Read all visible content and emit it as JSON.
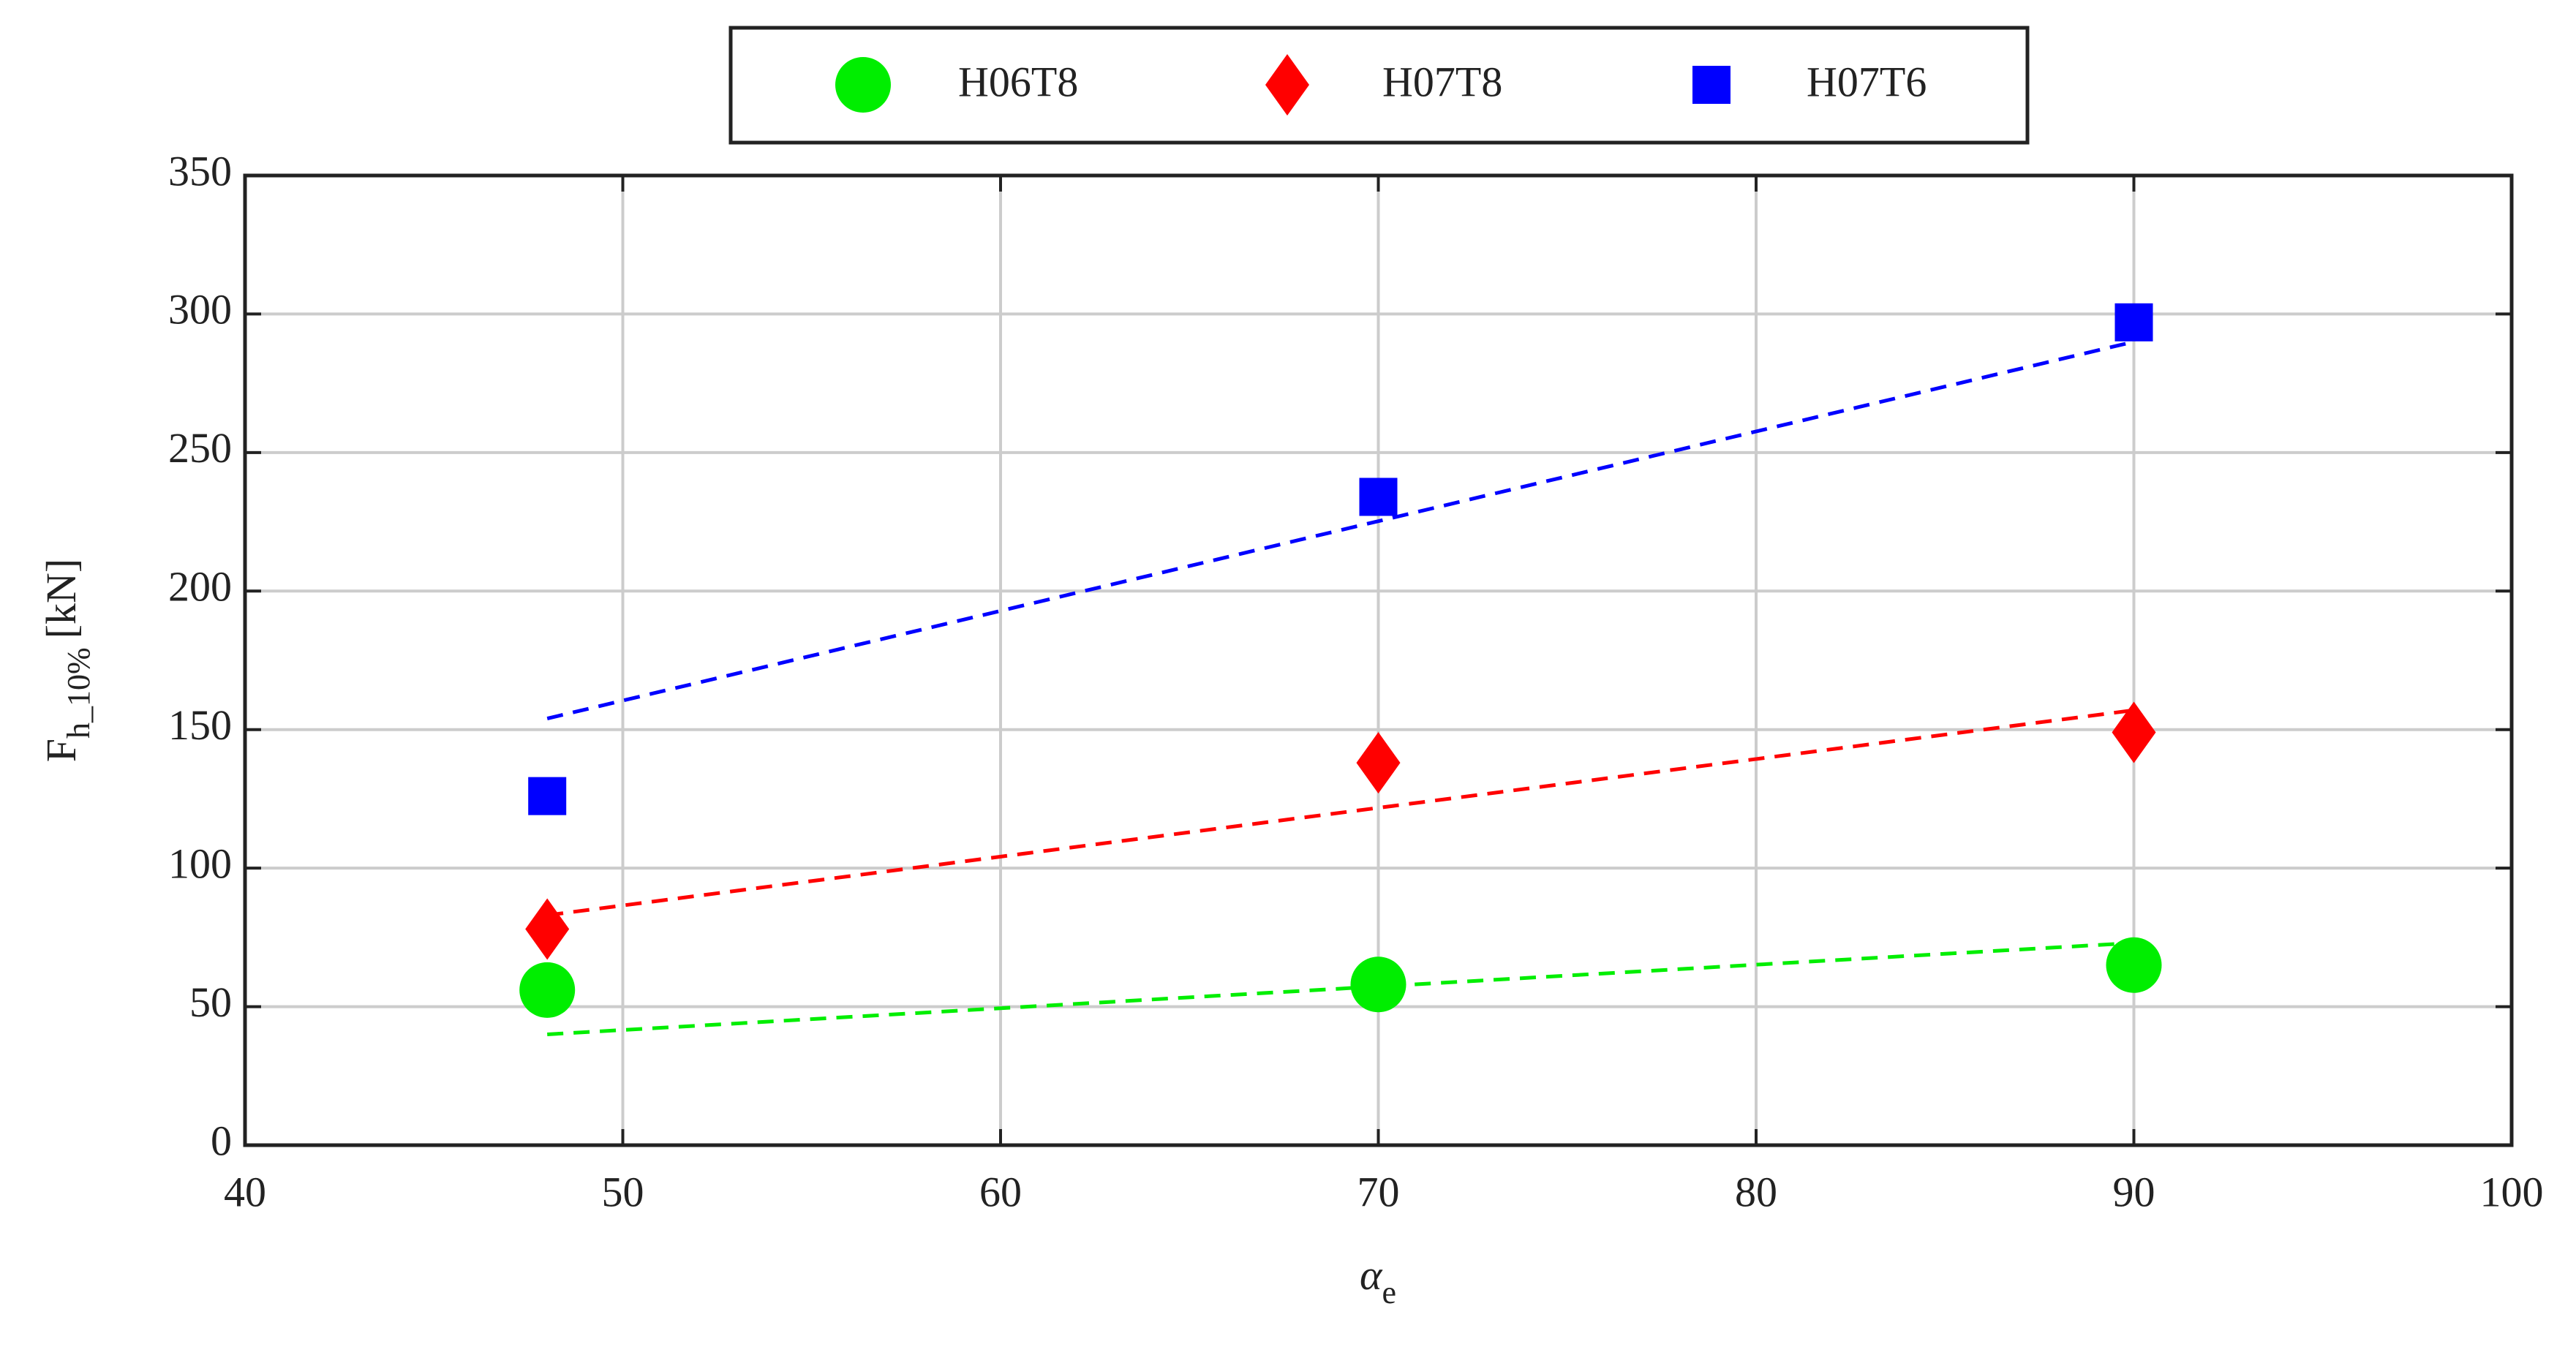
{
  "chart_data": {
    "type": "scatter",
    "xlabel": {
      "main": "α",
      "sub": "e"
    },
    "ylabel": {
      "main": "F",
      "sub": "h_10%",
      "suffix": "[kN]"
    },
    "xlim": [
      40,
      100
    ],
    "xticks": [
      40,
      50,
      60,
      70,
      80,
      90,
      100
    ],
    "ylim": [
      0,
      350
    ],
    "yticks": [
      0,
      50,
      100,
      150,
      200,
      250,
      300,
      350
    ],
    "grid": true,
    "legend": "top",
    "series": [
      {
        "name": "H06T8",
        "color": "#00ee00",
        "marker": "circle",
        "x": [
          48,
          70,
          90
        ],
        "values": [
          56,
          58,
          65
        ],
        "trend": {
          "x": [
            48,
            90
          ],
          "values": [
            40,
            73
          ]
        }
      },
      {
        "name": "H07T8",
        "color": "#ff0000",
        "marker": "diamond",
        "x": [
          48,
          70,
          90
        ],
        "values": [
          78,
          138,
          149
        ],
        "trend": {
          "x": [
            48,
            90
          ],
          "values": [
            83,
            157
          ]
        }
      },
      {
        "name": "H07T6",
        "color": "#0000ff",
        "marker": "square",
        "x": [
          48,
          70,
          90
        ],
        "values": [
          126,
          234,
          297
        ],
        "trend": {
          "x": [
            48,
            90
          ],
          "values": [
            154,
            290
          ]
        }
      }
    ]
  }
}
